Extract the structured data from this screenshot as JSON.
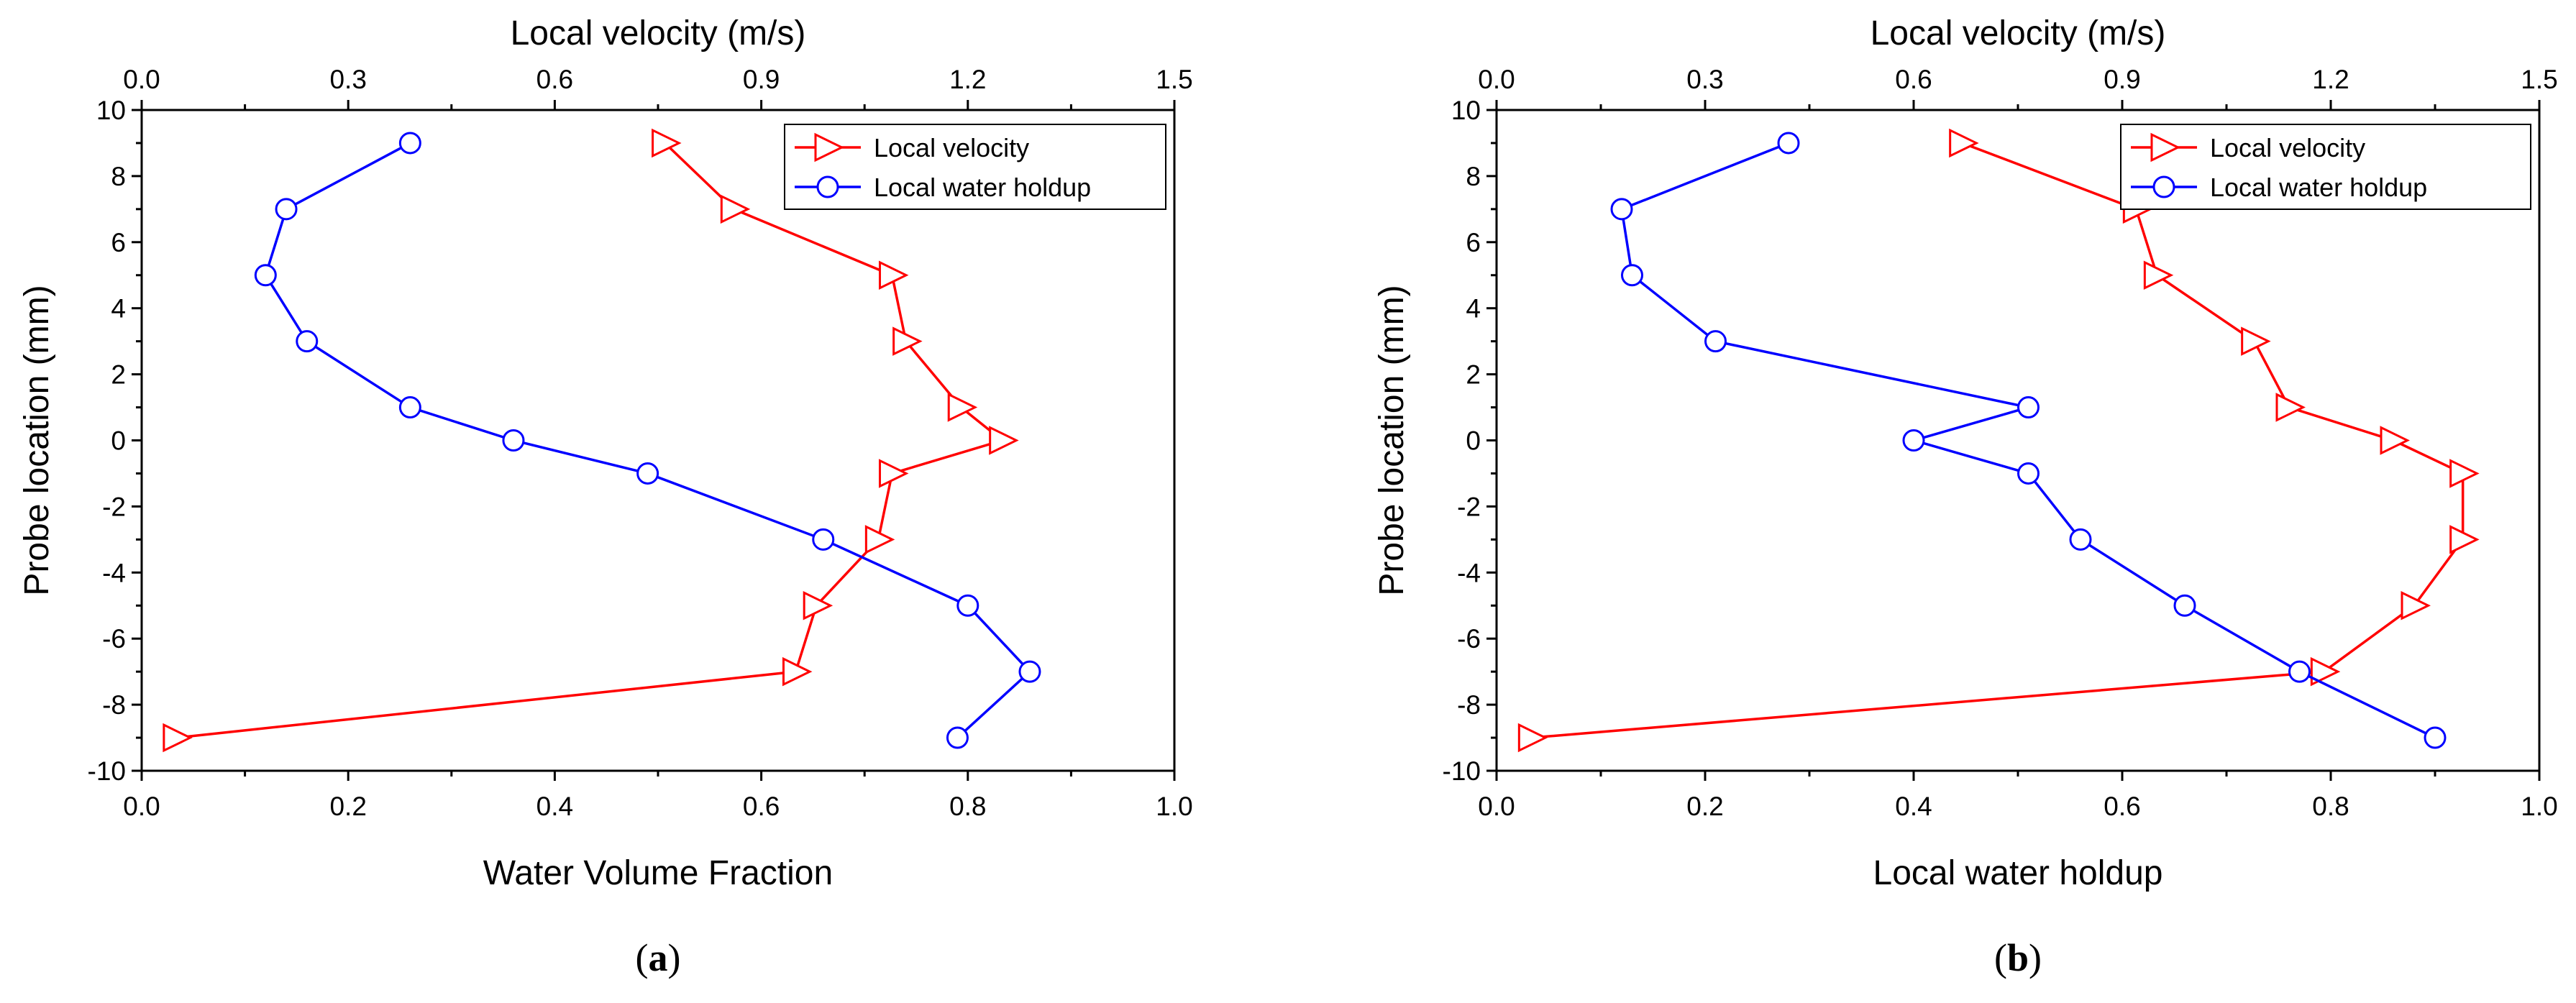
{
  "chart_data": [
    {
      "type": "line",
      "panel_label": "(a)",
      "panel_letter": "a",
      "ylabel": "Probe location (mm)",
      "xlabel_bottom": "Water Volume Fraction",
      "xlabel_top": "Local velocity (m/s)",
      "xlim_bottom": [
        0.0,
        1.0
      ],
      "xlim_top": [
        0.0,
        1.5
      ],
      "ylim": [
        -10,
        10
      ],
      "xticks_bottom": [
        "0.0",
        "0.2",
        "0.4",
        "0.6",
        "0.8",
        "1.0"
      ],
      "xticks_top": [
        "0.0",
        "0.3",
        "0.6",
        "0.9",
        "1.2",
        "1.5"
      ],
      "yticks": [
        "-10",
        "-8",
        "-6",
        "-4",
        "-2",
        "0",
        "2",
        "4",
        "6",
        "8",
        "10"
      ],
      "legend_position": "top-right",
      "series": [
        {
          "name": "Local velocity",
          "axis": "top",
          "color": "#ff0000",
          "marker": "triangle-right",
          "points": [
            [
              0.76,
              9
            ],
            [
              0.86,
              7
            ],
            [
              1.09,
              5
            ],
            [
              1.11,
              3
            ],
            [
              1.19,
              1
            ],
            [
              1.25,
              0
            ],
            [
              1.09,
              -1
            ],
            [
              1.07,
              -3
            ],
            [
              0.98,
              -5
            ],
            [
              0.95,
              -7
            ],
            [
              0.05,
              -9
            ]
          ]
        },
        {
          "name": "Local water holdup",
          "axis": "bottom",
          "color": "#0000ff",
          "marker": "circle",
          "points": [
            [
              0.26,
              9
            ],
            [
              0.14,
              7
            ],
            [
              0.12,
              5
            ],
            [
              0.16,
              3
            ],
            [
              0.26,
              1
            ],
            [
              0.36,
              0
            ],
            [
              0.49,
              -1
            ],
            [
              0.66,
              -3
            ],
            [
              0.8,
              -5
            ],
            [
              0.86,
              -7
            ],
            [
              0.79,
              -9
            ]
          ]
        }
      ]
    },
    {
      "type": "line",
      "panel_label": "(b)",
      "panel_letter": "b",
      "ylabel": "Probe location (mm)",
      "xlabel_bottom": "Local water holdup",
      "xlabel_top": "Local velocity (m/s)",
      "xlim_bottom": [
        0.0,
        1.0
      ],
      "xlim_top": [
        0.0,
        1.5
      ],
      "ylim": [
        -10,
        10
      ],
      "xticks_bottom": [
        "0.0",
        "0.2",
        "0.4",
        "0.6",
        "0.8",
        "1.0"
      ],
      "xticks_top": [
        "0.0",
        "0.3",
        "0.6",
        "0.9",
        "1.2",
        "1.5"
      ],
      "yticks": [
        "-10",
        "-8",
        "-6",
        "-4",
        "-2",
        "0",
        "2",
        "4",
        "6",
        "8",
        "10"
      ],
      "legend_position": "top-right",
      "series": [
        {
          "name": "Local velocity",
          "axis": "top",
          "color": "#ff0000",
          "marker": "triangle-right",
          "points": [
            [
              0.67,
              9
            ],
            [
              0.92,
              7
            ],
            [
              0.95,
              5
            ],
            [
              1.09,
              3
            ],
            [
              1.14,
              1
            ],
            [
              1.29,
              0
            ],
            [
              1.39,
              -1
            ],
            [
              1.39,
              -3
            ],
            [
              1.32,
              -5
            ],
            [
              1.19,
              -7
            ],
            [
              0.05,
              -9
            ]
          ]
        },
        {
          "name": "Local water holdup",
          "axis": "bottom",
          "color": "#0000ff",
          "marker": "circle",
          "points": [
            [
              0.28,
              9
            ],
            [
              0.12,
              7
            ],
            [
              0.13,
              5
            ],
            [
              0.21,
              3
            ],
            [
              0.51,
              1
            ],
            [
              0.4,
              0
            ],
            [
              0.51,
              -1
            ],
            [
              0.56,
              -3
            ],
            [
              0.66,
              -5
            ],
            [
              0.77,
              -7
            ],
            [
              0.9,
              -9
            ]
          ]
        }
      ]
    }
  ]
}
